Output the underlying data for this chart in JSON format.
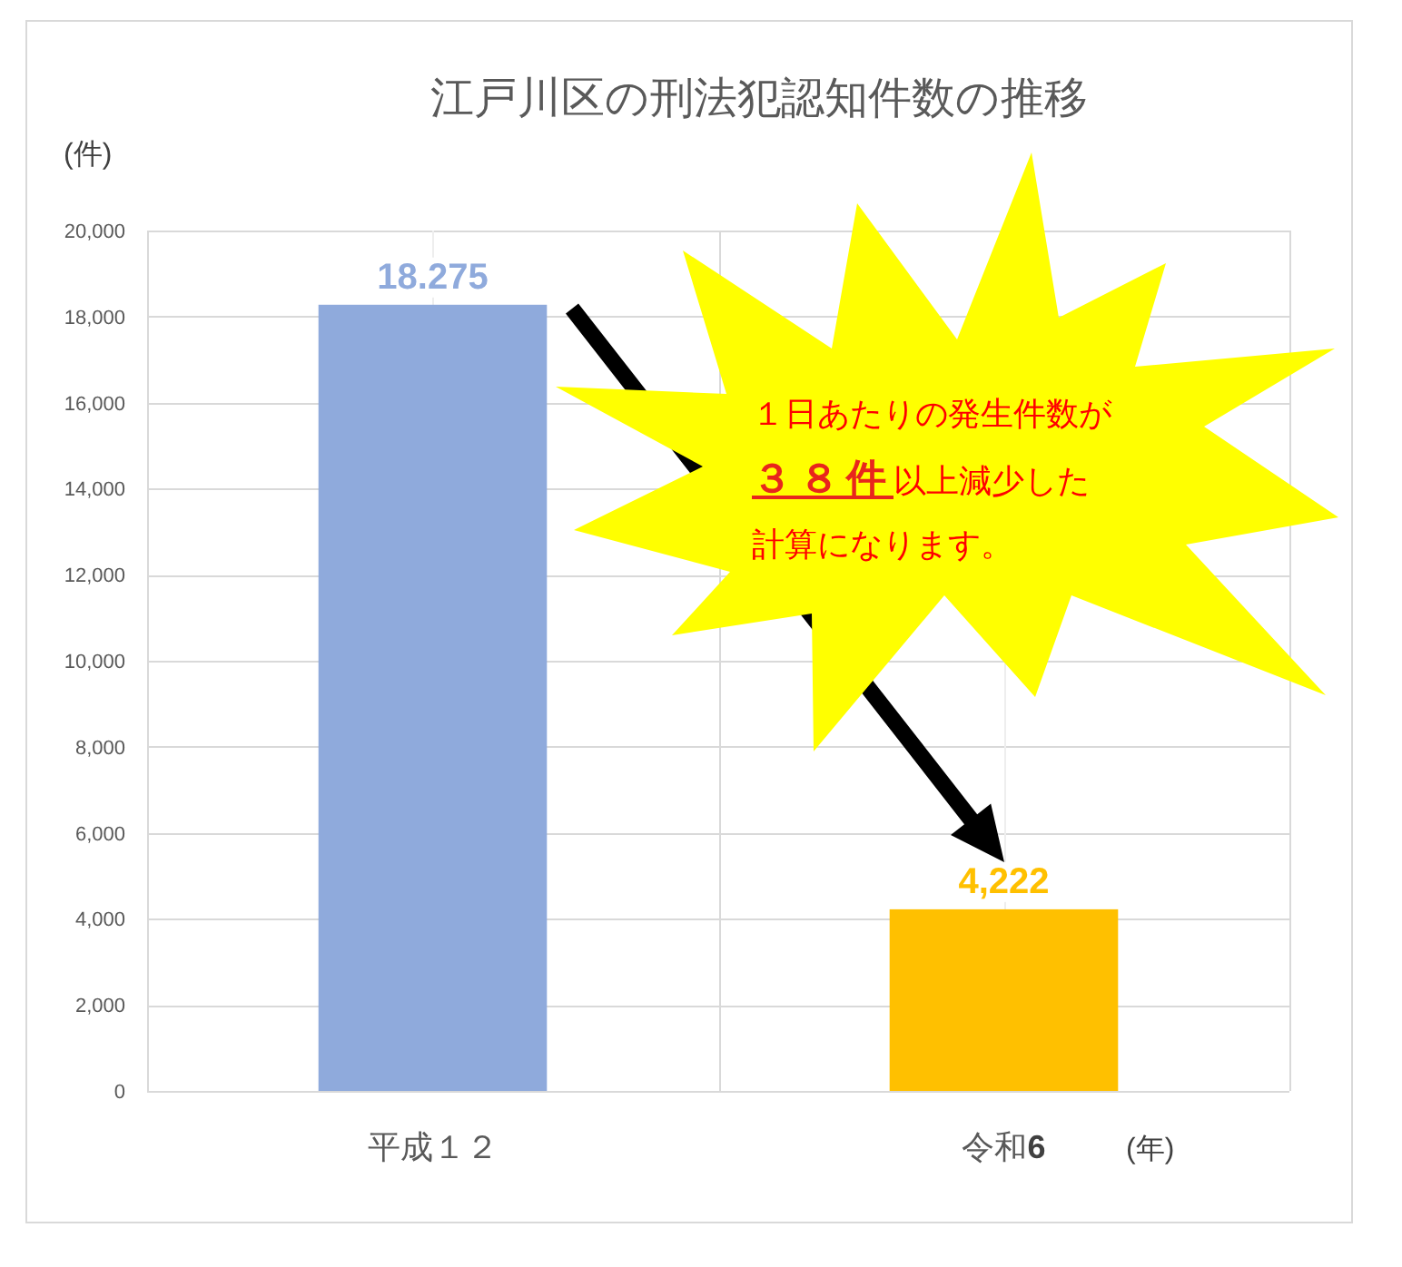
{
  "chart_data": {
    "type": "bar",
    "title": "江戸川区の刑法犯認知件数の推移",
    "ylabel": "(件)",
    "xlabel": "(年)",
    "categories": [
      "平成１２",
      "令和**6**"
    ],
    "values": [
      18275,
      4222
    ],
    "colors": [
      "#8faadc",
      "#ffc000"
    ],
    "value_labels": [
      null,
      "4,222"
    ],
    "ylim": [
      0,
      20000
    ],
    "yticks": [
      0,
      {
        "value": 2000,
        "label": "2,000"
      },
      {
        "value": 4000,
        "label": "4,000"
      },
      {
        "value": 6000,
        "label": "6,000"
      },
      {
        "value": 8000,
        "label": "8,000"
      },
      {
        "value": 10000,
        "label": "10,000"
      },
      {
        "value": 12000,
        "label": "12,000"
      },
      {
        "value": 14000,
        "label": "14,000"
      },
      {
        "value": 16000,
        "label": "16,000"
      },
      {
        "value": 18000,
        "label": "18,000"
      },
      {
        "value": 20000,
        "label": "20,000"
      }
    ],
    "grid": true,
    "annotations": [
      "１日あたりの発生件数が**３８件**以上減少した計算になります。",
      {
        "text": "18.275",
        "x": "平成１２",
        "y": 18275
      }
    ]
  }
}
